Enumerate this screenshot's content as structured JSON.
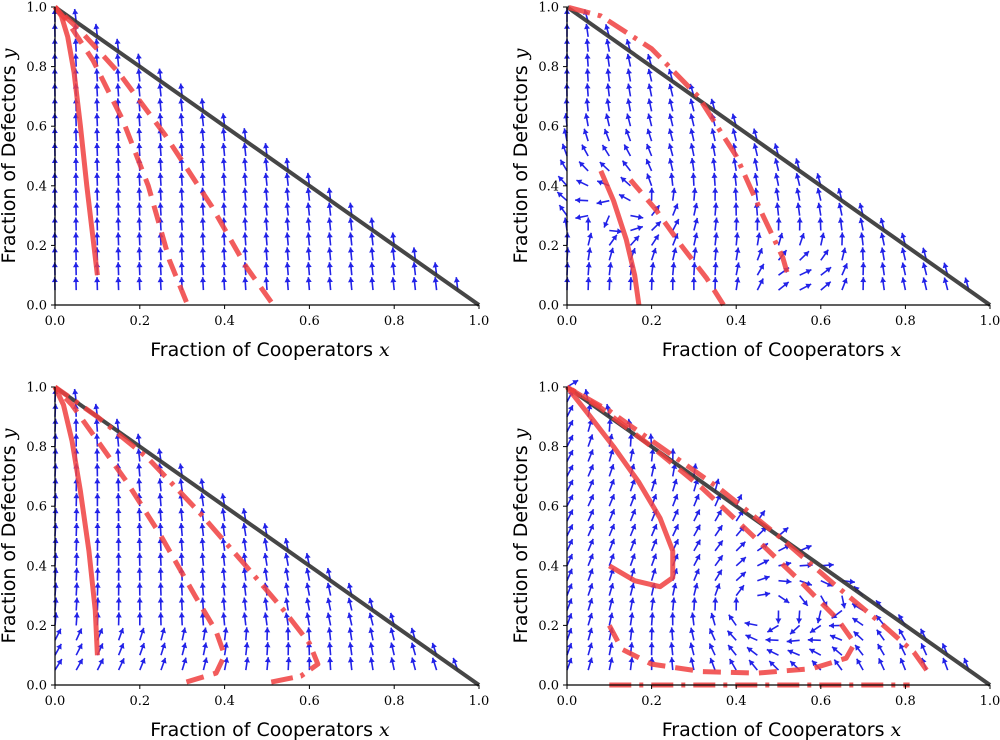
{
  "colors": {
    "arrow": "#2222e8",
    "trajectory": "#f04040",
    "boundary": "#333333",
    "axis": "#000000"
  },
  "chart_data": [
    {
      "type": "line",
      "panel": "top-left",
      "xlabel": "Fraction of Cooperators",
      "xlabel_var": "x",
      "ylabel": "Fraction of Defectors",
      "ylabel_var": "y",
      "xlim": [
        0,
        1
      ],
      "ylim": [
        0,
        1
      ],
      "xticks": [
        "0.0",
        "0.2",
        "0.4",
        "0.6",
        "0.8",
        "1.0"
      ],
      "yticks": [
        "0.0",
        "0.2",
        "0.4",
        "0.6",
        "0.8",
        "1.0"
      ],
      "series": [
        {
          "style": "solid",
          "points": [
            [
              0.1,
              0.1
            ],
            [
              0.09,
              0.22
            ],
            [
              0.075,
              0.4
            ],
            [
              0.06,
              0.6
            ],
            [
              0.045,
              0.78
            ],
            [
              0.03,
              0.9
            ],
            [
              0.015,
              0.97
            ],
            [
              0.0,
              1.0
            ]
          ]
        },
        {
          "style": "dashed",
          "points": [
            [
              0.31,
              0.01
            ],
            [
              0.27,
              0.15
            ],
            [
              0.22,
              0.4
            ],
            [
              0.16,
              0.62
            ],
            [
              0.09,
              0.82
            ],
            [
              0.03,
              0.95
            ],
            [
              0.0,
              1.0
            ]
          ]
        },
        {
          "style": "dashed",
          "points": [
            [
              0.51,
              0.01
            ],
            [
              0.45,
              0.13
            ],
            [
              0.37,
              0.33
            ],
            [
              0.26,
              0.57
            ],
            [
              0.15,
              0.78
            ],
            [
              0.06,
              0.92
            ],
            [
              0.0,
              1.0
            ]
          ]
        }
      ]
    },
    {
      "type": "line",
      "panel": "top-right",
      "xlabel": "Fraction of Cooperators",
      "xlabel_var": "x",
      "ylabel": "Fraction of Defectors",
      "ylabel_var": "y",
      "xlim": [
        0,
        1
      ],
      "ylim": [
        0,
        1
      ],
      "xticks": [
        "0.0",
        "0.2",
        "0.4",
        "0.6",
        "0.8",
        "1.0"
      ],
      "yticks": [
        "0.0",
        "0.2",
        "0.4",
        "0.6",
        "0.8",
        "1.0"
      ],
      "series": [
        {
          "style": "solid",
          "points": [
            [
              0.17,
              0.0
            ],
            [
              0.16,
              0.1
            ],
            [
              0.14,
              0.22
            ],
            [
              0.11,
              0.35
            ],
            [
              0.08,
              0.45
            ]
          ]
        },
        {
          "style": "dashed",
          "points": [
            [
              0.37,
              0.0
            ],
            [
              0.33,
              0.09
            ],
            [
              0.27,
              0.2
            ],
            [
              0.21,
              0.32
            ],
            [
              0.15,
              0.42
            ]
          ]
        },
        {
          "style": "dashdot",
          "points": [
            [
              0.52,
              0.11
            ],
            [
              0.51,
              0.16
            ],
            [
              0.46,
              0.31
            ],
            [
              0.4,
              0.5
            ],
            [
              0.31,
              0.7
            ],
            [
              0.2,
              0.86
            ],
            [
              0.08,
              0.97
            ],
            [
              0.0,
              1.0
            ]
          ]
        }
      ]
    },
    {
      "type": "line",
      "panel": "bottom-left",
      "xlabel": "Fraction of Cooperators",
      "xlabel_var": "x",
      "ylabel": "Fraction of Defectors",
      "ylabel_var": "y",
      "xlim": [
        0,
        1
      ],
      "ylim": [
        0,
        1
      ],
      "xticks": [
        "0.0",
        "0.2",
        "0.4",
        "0.6",
        "0.8",
        "1.0"
      ],
      "yticks": [
        "0.0",
        "0.2",
        "0.4",
        "0.6",
        "0.8",
        "1.0"
      ],
      "series": [
        {
          "style": "solid",
          "points": [
            [
              0.1,
              0.1
            ],
            [
              0.095,
              0.25
            ],
            [
              0.08,
              0.45
            ],
            [
              0.06,
              0.65
            ],
            [
              0.04,
              0.82
            ],
            [
              0.02,
              0.94
            ],
            [
              0.0,
              1.0
            ]
          ]
        },
        {
          "style": "dashed",
          "points": [
            [
              0.31,
              0.01
            ],
            [
              0.38,
              0.04
            ],
            [
              0.4,
              0.1
            ],
            [
              0.38,
              0.18
            ],
            [
              0.33,
              0.3
            ],
            [
              0.25,
              0.5
            ],
            [
              0.17,
              0.68
            ],
            [
              0.1,
              0.82
            ],
            [
              0.04,
              0.94
            ],
            [
              0.0,
              1.0
            ]
          ]
        },
        {
          "style": "dashdot",
          "points": [
            [
              0.51,
              0.01
            ],
            [
              0.58,
              0.03
            ],
            [
              0.62,
              0.07
            ],
            [
              0.6,
              0.14
            ],
            [
              0.54,
              0.25
            ],
            [
              0.45,
              0.4
            ],
            [
              0.34,
              0.58
            ],
            [
              0.22,
              0.76
            ],
            [
              0.1,
              0.9
            ],
            [
              0.0,
              1.0
            ]
          ]
        }
      ]
    },
    {
      "type": "line",
      "panel": "bottom-right",
      "xlabel": "Fraction of Cooperators",
      "xlabel_var": "x",
      "ylabel": "Fraction of Defectors",
      "ylabel_var": "y",
      "xlim": [
        0,
        1
      ],
      "ylim": [
        0,
        1
      ],
      "xticks": [
        "0.0",
        "0.2",
        "0.4",
        "0.6",
        "0.8",
        "1.0"
      ],
      "yticks": [
        "0.0",
        "0.2",
        "0.4",
        "0.6",
        "0.8",
        "1.0"
      ],
      "series": [
        {
          "style": "solid",
          "points": [
            [
              0.1,
              0.4
            ],
            [
              0.16,
              0.35
            ],
            [
              0.22,
              0.33
            ],
            [
              0.25,
              0.36
            ],
            [
              0.25,
              0.45
            ],
            [
              0.22,
              0.56
            ],
            [
              0.17,
              0.68
            ],
            [
              0.11,
              0.8
            ],
            [
              0.05,
              0.91
            ],
            [
              0.0,
              1.0
            ]
          ]
        },
        {
          "style": "dashed",
          "points": [
            [
              0.1,
              0.2
            ],
            [
              0.13,
              0.12
            ],
            [
              0.2,
              0.07
            ],
            [
              0.32,
              0.045
            ],
            [
              0.45,
              0.04
            ],
            [
              0.58,
              0.055
            ],
            [
              0.66,
              0.09
            ],
            [
              0.68,
              0.14
            ],
            [
              0.64,
              0.22
            ],
            [
              0.55,
              0.35
            ],
            [
              0.44,
              0.5
            ],
            [
              0.32,
              0.66
            ],
            [
              0.2,
              0.8
            ],
            [
              0.08,
              0.93
            ],
            [
              0.0,
              1.0
            ]
          ]
        },
        {
          "style": "dashdot",
          "points": [
            [
              0.1,
              0.0
            ],
            [
              0.3,
              0.0
            ],
            [
              0.5,
              0.0
            ],
            [
              0.7,
              0.0
            ],
            [
              0.81,
              0.0
            ]
          ]
        },
        {
          "style": "dashdot",
          "points": [
            [
              0.85,
              0.05
            ],
            [
              0.82,
              0.11
            ],
            [
              0.74,
              0.21
            ],
            [
              0.63,
              0.34
            ],
            [
              0.5,
              0.5
            ],
            [
              0.36,
              0.66
            ],
            [
              0.22,
              0.8
            ],
            [
              0.1,
              0.92
            ],
            [
              0.0,
              1.0
            ]
          ]
        }
      ]
    }
  ]
}
